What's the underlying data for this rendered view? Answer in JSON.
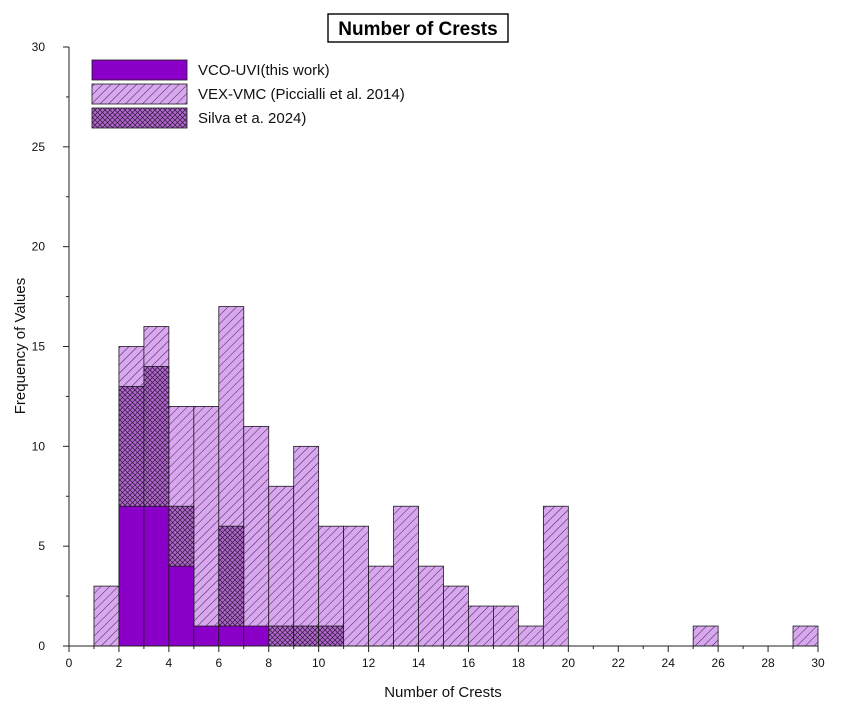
{
  "chart_data": {
    "type": "bar",
    "title": "Number of Crests",
    "xlabel": "Number of Crests",
    "ylabel": "Frequency of Values",
    "xlim": [
      0,
      30
    ],
    "ylim": [
      0,
      30
    ],
    "x_ticks": [
      0,
      2,
      4,
      6,
      8,
      10,
      12,
      14,
      16,
      18,
      20,
      22,
      24,
      26,
      28,
      30
    ],
    "y_ticks": [
      0,
      5,
      10,
      15,
      20,
      25,
      30
    ],
    "bin_width": 1,
    "grid": false,
    "legend_position": "top-left",
    "series": [
      {
        "name": "VEX-VMC (Piccialli et al. 2014)",
        "color": "#d9a6f0",
        "pattern": "diagonal-hatch",
        "bins": [
          {
            "start": 1,
            "value": 3
          },
          {
            "start": 2,
            "value": 15
          },
          {
            "start": 3,
            "value": 16
          },
          {
            "start": 4,
            "value": 12
          },
          {
            "start": 5,
            "value": 12
          },
          {
            "start": 6,
            "value": 17
          },
          {
            "start": 7,
            "value": 11
          },
          {
            "start": 8,
            "value": 8
          },
          {
            "start": 9,
            "value": 10
          },
          {
            "start": 10,
            "value": 6
          },
          {
            "start": 11,
            "value": 6
          },
          {
            "start": 12,
            "value": 4
          },
          {
            "start": 13,
            "value": 7
          },
          {
            "start": 14,
            "value": 4
          },
          {
            "start": 15,
            "value": 3
          },
          {
            "start": 16,
            "value": 2
          },
          {
            "start": 17,
            "value": 2
          },
          {
            "start": 18,
            "value": 1
          },
          {
            "start": 19,
            "value": 7
          },
          {
            "start": 25,
            "value": 1
          },
          {
            "start": 29,
            "value": 1
          }
        ]
      },
      {
        "name": "Silva et a. 2024)",
        "color": "#b265cf",
        "pattern": "crosshatch",
        "bins": [
          {
            "start": 2,
            "value": 13
          },
          {
            "start": 3,
            "value": 14
          },
          {
            "start": 4,
            "value": 7
          },
          {
            "start": 6,
            "value": 6
          },
          {
            "start": 8,
            "value": 1
          },
          {
            "start": 9,
            "value": 1
          },
          {
            "start": 10,
            "value": 1
          }
        ]
      },
      {
        "name": "VCO-UVI(this work)",
        "color": "#8b00c9",
        "pattern": "solid",
        "bins": [
          {
            "start": 2,
            "value": 7
          },
          {
            "start": 3,
            "value": 7
          },
          {
            "start": 4,
            "value": 4
          },
          {
            "start": 5,
            "value": 1
          },
          {
            "start": 6,
            "value": 1
          },
          {
            "start": 7,
            "value": 1
          }
        ]
      }
    ],
    "legend_order": [
      "VCO-UVI(this work)",
      "VEX-VMC (Piccialli et al. 2014)",
      "Silva et a. 2024)"
    ]
  }
}
